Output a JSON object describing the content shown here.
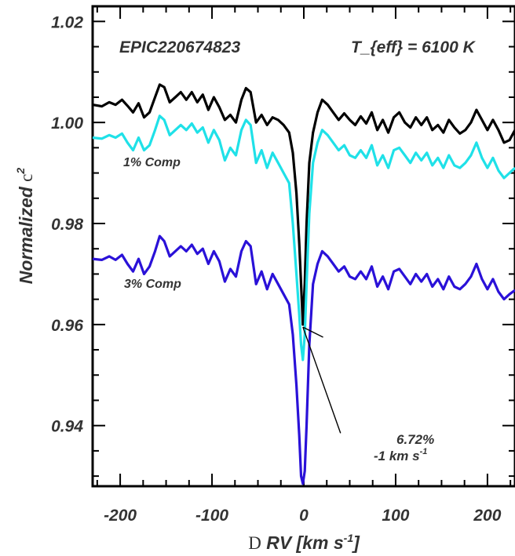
{
  "chart_data": {
    "type": "line",
    "title": "",
    "xlabel": {
      "symbol": "D",
      "text": " RV [km s",
      "sup": "-1",
      "close": "]"
    },
    "ylabel": {
      "text": "Normalized ",
      "symbol": "c",
      "sup": "2"
    },
    "xlim": [
      -230,
      230
    ],
    "ylim": [
      0.928,
      1.023
    ],
    "x_ticks": [
      -200,
      -100,
      0,
      100,
      200
    ],
    "x_tick_labels": [
      "-200",
      "-100",
      "0",
      "100",
      "200"
    ],
    "y_ticks": [
      0.94,
      0.96,
      0.98,
      1.0,
      1.02
    ],
    "y_tick_labels": [
      "0.94",
      "0.96",
      "0.98",
      "1.00",
      "1.02"
    ],
    "annotations": {
      "star": "EPIC220674823",
      "teff": "T_{eff} = 6100 K",
      "comp1": "1% Comp",
      "comp3": "3% Comp",
      "pct": "6.72%",
      "rv": "-1 km s",
      "rv_sup": "-1"
    },
    "pointer": {
      "from": [
        -1,
        0.9595
      ],
      "to": [
        40,
        0.9385
      ]
    },
    "pointer_tick": {
      "from": [
        -1,
        0.9595
      ],
      "to": [
        21,
        0.9575
      ]
    },
    "series": [
      {
        "color": "#000000",
        "x": [
          -230,
          -220,
          -212,
          -205,
          -198,
          -192,
          -186,
          -180,
          -174,
          -168,
          -162,
          -157,
          -152,
          -146,
          -140,
          -134,
          -128,
          -122,
          -116,
          -110,
          -104,
          -98,
          -92,
          -86,
          -80,
          -74,
          -68,
          -63,
          -58,
          -52,
          -46,
          -40,
          -34,
          -28,
          -22,
          -16,
          -12,
          -8,
          -5,
          -3,
          -1,
          1,
          3,
          6,
          10,
          15,
          20,
          26,
          32,
          38,
          44,
          50,
          56,
          62,
          68,
          74,
          80,
          86,
          92,
          98,
          104,
          110,
          116,
          122,
          128,
          134,
          140,
          146,
          152,
          158,
          164,
          170,
          176,
          182,
          188,
          194,
          200,
          206,
          212,
          218,
          224,
          230
        ],
        "y": [
          1.0035,
          1.0032,
          1.004,
          1.0035,
          1.0045,
          1.0033,
          1.002,
          1.0038,
          1.001,
          1.002,
          1.005,
          1.0075,
          1.007,
          1.004,
          1.005,
          1.006,
          1.0045,
          1.006,
          1.004,
          1.0055,
          1.0025,
          1.005,
          1.003,
          1.0005,
          1.0015,
          1.0,
          1.0045,
          1.0068,
          1.006,
          1.0,
          1.0015,
          0.9995,
          1.001,
          1.0005,
          0.9995,
          0.998,
          0.994,
          0.986,
          0.976,
          0.968,
          0.96,
          0.968,
          0.98,
          0.992,
          0.998,
          1.002,
          1.0045,
          1.0035,
          1.002,
          1.0005,
          1.0018,
          1.0005,
          0.9995,
          1.0012,
          0.9998,
          1.002,
          0.9985,
          1.0005,
          0.998,
          1.001,
          1.002,
          1.0,
          0.999,
          1.001,
          0.9995,
          1.001,
          0.9985,
          0.9995,
          0.998,
          1.0005,
          0.999,
          0.9978,
          0.9985,
          1.0,
          1.0025,
          1.0005,
          0.9985,
          1.0005,
          0.9985,
          0.996,
          0.9965,
          0.9985
        ]
      },
      {
        "color": "#1fe1e8",
        "x": [
          -230,
          -220,
          -212,
          -205,
          -198,
          -192,
          -186,
          -180,
          -174,
          -168,
          -162,
          -157,
          -152,
          -146,
          -140,
          -134,
          -128,
          -122,
          -116,
          -110,
          -104,
          -98,
          -92,
          -86,
          -80,
          -74,
          -68,
          -63,
          -58,
          -52,
          -46,
          -40,
          -34,
          -28,
          -22,
          -16,
          -12,
          -8,
          -5,
          -3,
          -1,
          1,
          3,
          6,
          10,
          15,
          20,
          26,
          32,
          38,
          44,
          50,
          56,
          62,
          68,
          74,
          80,
          86,
          92,
          98,
          104,
          110,
          116,
          122,
          128,
          134,
          140,
          146,
          152,
          158,
          164,
          170,
          176,
          182,
          188,
          194,
          200,
          206,
          212,
          218,
          224,
          230
        ],
        "y": [
          0.997,
          0.9968,
          0.9975,
          0.997,
          0.9978,
          0.996,
          0.9945,
          0.997,
          0.9945,
          0.9955,
          0.9985,
          1.0013,
          1.0005,
          0.9975,
          0.9985,
          0.9995,
          0.9985,
          0.9998,
          0.998,
          0.999,
          0.996,
          0.9985,
          0.9965,
          0.9925,
          0.995,
          0.9935,
          0.9985,
          1.0005,
          0.9995,
          0.992,
          0.9945,
          0.991,
          0.994,
          0.992,
          0.99,
          0.988,
          0.98,
          0.97,
          0.962,
          0.956,
          0.953,
          0.958,
          0.968,
          0.982,
          0.992,
          0.996,
          0.9985,
          0.9975,
          0.996,
          0.9945,
          0.9955,
          0.9935,
          0.993,
          0.9945,
          0.993,
          0.9955,
          0.9915,
          0.9935,
          0.991,
          0.9945,
          0.995,
          0.9935,
          0.992,
          0.994,
          0.9925,
          0.994,
          0.9915,
          0.993,
          0.991,
          0.9935,
          0.9915,
          0.991,
          0.992,
          0.9935,
          0.996,
          0.993,
          0.991,
          0.993,
          0.9905,
          0.989,
          0.99,
          0.991
        ]
      },
      {
        "color": "#2a11d8",
        "x": [
          -230,
          -220,
          -212,
          -205,
          -198,
          -192,
          -186,
          -180,
          -174,
          -168,
          -162,
          -157,
          -152,
          -146,
          -140,
          -134,
          -128,
          -122,
          -116,
          -110,
          -104,
          -98,
          -92,
          -86,
          -80,
          -74,
          -68,
          -63,
          -58,
          -52,
          -46,
          -40,
          -34,
          -28,
          -22,
          -16,
          -12,
          -8,
          -5,
          -3,
          -1,
          1,
          3,
          6,
          10,
          15,
          20,
          26,
          32,
          38,
          44,
          50,
          56,
          62,
          68,
          74,
          80,
          86,
          92,
          98,
          104,
          110,
          116,
          122,
          128,
          134,
          140,
          146,
          152,
          158,
          164,
          170,
          176,
          182,
          188,
          194,
          200,
          206,
          212,
          218,
          224,
          230
        ],
        "y": [
          0.973,
          0.9728,
          0.9735,
          0.9728,
          0.9738,
          0.972,
          0.9705,
          0.973,
          0.97,
          0.9715,
          0.9745,
          0.9775,
          0.9765,
          0.9735,
          0.9745,
          0.9755,
          0.9745,
          0.9758,
          0.974,
          0.975,
          0.972,
          0.9745,
          0.9725,
          0.9685,
          0.971,
          0.9695,
          0.9745,
          0.9765,
          0.9755,
          0.968,
          0.9705,
          0.967,
          0.97,
          0.968,
          0.966,
          0.964,
          0.958,
          0.948,
          0.938,
          0.93,
          0.9285,
          0.931,
          0.94,
          0.956,
          0.968,
          0.972,
          0.9745,
          0.9735,
          0.972,
          0.9705,
          0.9715,
          0.9695,
          0.969,
          0.9705,
          0.969,
          0.9715,
          0.9675,
          0.9695,
          0.967,
          0.9705,
          0.971,
          0.9695,
          0.968,
          0.97,
          0.9685,
          0.97,
          0.9675,
          0.969,
          0.967,
          0.9695,
          0.9675,
          0.967,
          0.968,
          0.9695,
          0.972,
          0.969,
          0.967,
          0.969,
          0.9665,
          0.965,
          0.966,
          0.9668
        ]
      }
    ]
  }
}
